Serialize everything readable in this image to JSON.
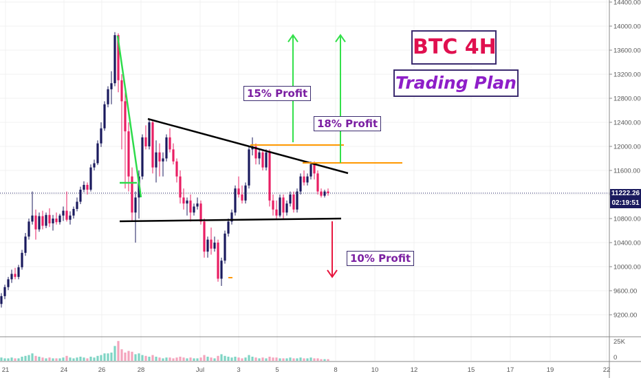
{
  "colors": {
    "up": "#1a1a5e",
    "down": "#e91e63",
    "vol_up": "#7fd4c4",
    "vol_down": "#f4a4bc",
    "trend_line": "#000000",
    "support_line": "#000000",
    "profit_target": "#ff9800",
    "arrow_up": "#33e04a",
    "arrow_down": "#e8173f",
    "drop_line": "#2edb4b",
    "title_text": "#e0104f",
    "subtitle_text": "#8e1ec8",
    "label_text": "#7b1fa2"
  },
  "annotations": {
    "title": "BTC 4H",
    "subtitle": "Trading Plan",
    "profit_15": "15% Profit",
    "profit_18": "18% Profit",
    "profit_10": "10% Profit"
  },
  "price_tags": {
    "last_price": "11222.26",
    "countdown": "02:19:51"
  },
  "chart_data": {
    "type": "candlestick",
    "symbol": "BTC 4H",
    "y_axis": {
      "range": [
        9000,
        14400
      ],
      "ticks": [
        9200,
        9600,
        10000,
        10400,
        10800,
        11200,
        11600,
        12000,
        12400,
        12800,
        13200,
        13600,
        14000,
        14400
      ],
      "tick_labels": [
        "9200.00",
        "9600.00",
        "10000.00",
        "10400.00",
        "10800.00",
        "11200.00",
        "11600.00",
        "12000.00",
        "12400.00",
        "12800.00",
        "13200.00",
        "13600.00",
        "14000.00",
        "14400.00"
      ]
    },
    "x_axis": {
      "labels": [
        "21",
        "24",
        "26",
        "28",
        "Jul",
        "3",
        "5",
        "8",
        "10",
        "12",
        "15",
        "17",
        "19",
        "22"
      ]
    },
    "volume_axis": {
      "labels": [
        "25K",
        "0"
      ]
    },
    "last_price": 11222.26,
    "candles": [
      {
        "o": 9380,
        "h": 9560,
        "l": 9320,
        "c": 9510
      },
      {
        "o": 9510,
        "h": 9700,
        "l": 9460,
        "c": 9660
      },
      {
        "o": 9660,
        "h": 9830,
        "l": 9610,
        "c": 9790
      },
      {
        "o": 9790,
        "h": 9950,
        "l": 9730,
        "c": 9880
      },
      {
        "o": 9880,
        "h": 9980,
        "l": 9790,
        "c": 9830
      },
      {
        "o": 9830,
        "h": 10030,
        "l": 9790,
        "c": 9990
      },
      {
        "o": 9990,
        "h": 10280,
        "l": 9950,
        "c": 10230
      },
      {
        "o": 10230,
        "h": 10560,
        "l": 10180,
        "c": 10500
      },
      {
        "o": 10500,
        "h": 10800,
        "l": 10450,
        "c": 10750
      },
      {
        "o": 10750,
        "h": 11250,
        "l": 10700,
        "c": 10850
      },
      {
        "o": 10850,
        "h": 10950,
        "l": 10450,
        "c": 10620
      },
      {
        "o": 10620,
        "h": 10900,
        "l": 10580,
        "c": 10840
      },
      {
        "o": 10840,
        "h": 10930,
        "l": 10620,
        "c": 10680
      },
      {
        "o": 10680,
        "h": 10900,
        "l": 10640,
        "c": 10860
      },
      {
        "o": 10860,
        "h": 10970,
        "l": 10660,
        "c": 10720
      },
      {
        "o": 10720,
        "h": 10860,
        "l": 10600,
        "c": 10800
      },
      {
        "o": 10800,
        "h": 10900,
        "l": 10700,
        "c": 10740
      },
      {
        "o": 10740,
        "h": 10880,
        "l": 10700,
        "c": 10850
      },
      {
        "o": 10850,
        "h": 11000,
        "l": 10760,
        "c": 10930
      },
      {
        "o": 10930,
        "h": 11250,
        "l": 10750,
        "c": 10780
      },
      {
        "o": 10780,
        "h": 10920,
        "l": 10700,
        "c": 10850
      },
      {
        "o": 10850,
        "h": 11000,
        "l": 10800,
        "c": 10960
      },
      {
        "o": 10960,
        "h": 11150,
        "l": 10920,
        "c": 11080
      },
      {
        "o": 11080,
        "h": 11330,
        "l": 11040,
        "c": 11280
      },
      {
        "o": 11280,
        "h": 11420,
        "l": 11240,
        "c": 11360
      },
      {
        "o": 11360,
        "h": 11400,
        "l": 11200,
        "c": 11280
      },
      {
        "o": 11280,
        "h": 11700,
        "l": 11250,
        "c": 11650
      },
      {
        "o": 11650,
        "h": 11780,
        "l": 11600,
        "c": 11720
      },
      {
        "o": 11720,
        "h": 12100,
        "l": 11690,
        "c": 12050
      },
      {
        "o": 12050,
        "h": 12400,
        "l": 11990,
        "c": 12300
      },
      {
        "o": 12300,
        "h": 12750,
        "l": 12260,
        "c": 12700
      },
      {
        "o": 12700,
        "h": 13000,
        "l": 12650,
        "c": 12950
      },
      {
        "o": 12950,
        "h": 13250,
        "l": 12700,
        "c": 13050
      },
      {
        "o": 13050,
        "h": 13900,
        "l": 13000,
        "c": 13850
      },
      {
        "o": 13850,
        "h": 13880,
        "l": 12900,
        "c": 13100
      },
      {
        "o": 13100,
        "h": 13200,
        "l": 11950,
        "c": 12750
      },
      {
        "o": 12750,
        "h": 12900,
        "l": 11300,
        "c": 12250
      },
      {
        "o": 12250,
        "h": 12400,
        "l": 11250,
        "c": 11500
      },
      {
        "o": 11500,
        "h": 11650,
        "l": 10750,
        "c": 10900
      },
      {
        "o": 10900,
        "h": 11250,
        "l": 10400,
        "c": 11150
      },
      {
        "o": 11150,
        "h": 11600,
        "l": 10800,
        "c": 11500
      },
      {
        "o": 11500,
        "h": 12200,
        "l": 11450,
        "c": 12150
      },
      {
        "o": 12150,
        "h": 12350,
        "l": 11950,
        "c": 12000
      },
      {
        "o": 12000,
        "h": 12450,
        "l": 11950,
        "c": 12400
      },
      {
        "o": 12400,
        "h": 12450,
        "l": 11550,
        "c": 11650
      },
      {
        "o": 11650,
        "h": 12100,
        "l": 11400,
        "c": 11900
      },
      {
        "o": 11900,
        "h": 12050,
        "l": 11500,
        "c": 11750
      },
      {
        "o": 11750,
        "h": 11900,
        "l": 11500,
        "c": 11800
      },
      {
        "o": 11800,
        "h": 12200,
        "l": 11750,
        "c": 12150
      },
      {
        "o": 12150,
        "h": 12300,
        "l": 11900,
        "c": 11950
      },
      {
        "o": 11950,
        "h": 12050,
        "l": 11700,
        "c": 11750
      },
      {
        "o": 11750,
        "h": 11800,
        "l": 11400,
        "c": 11500
      },
      {
        "o": 11500,
        "h": 11600,
        "l": 11050,
        "c": 11150
      },
      {
        "o": 11150,
        "h": 11300,
        "l": 10950,
        "c": 11050
      },
      {
        "o": 11050,
        "h": 11150,
        "l": 10850,
        "c": 11100
      },
      {
        "o": 11100,
        "h": 11200,
        "l": 10750,
        "c": 10900
      },
      {
        "o": 10900,
        "h": 11050,
        "l": 10850,
        "c": 11000
      },
      {
        "o": 11000,
        "h": 11150,
        "l": 10950,
        "c": 11050
      },
      {
        "o": 11050,
        "h": 11100,
        "l": 10700,
        "c": 10750
      },
      {
        "o": 10750,
        "h": 10800,
        "l": 10150,
        "c": 10250
      },
      {
        "o": 10250,
        "h": 10500,
        "l": 10150,
        "c": 10450
      },
      {
        "o": 10450,
        "h": 10650,
        "l": 10200,
        "c": 10300
      },
      {
        "o": 10300,
        "h": 10500,
        "l": 10250,
        "c": 10400
      },
      {
        "o": 10400,
        "h": 10450,
        "l": 9750,
        "c": 9800
      },
      {
        "o": 9800,
        "h": 10150,
        "l": 9680,
        "c": 10100
      },
      {
        "o": 10100,
        "h": 10600,
        "l": 10050,
        "c": 10550
      },
      {
        "o": 10550,
        "h": 10800,
        "l": 10500,
        "c": 10750
      },
      {
        "o": 10750,
        "h": 10950,
        "l": 10700,
        "c": 10900
      },
      {
        "o": 10900,
        "h": 11350,
        "l": 10850,
        "c": 11300
      },
      {
        "o": 11300,
        "h": 11500,
        "l": 11150,
        "c": 11200
      },
      {
        "o": 11200,
        "h": 11350,
        "l": 11050,
        "c": 11100
      },
      {
        "o": 11100,
        "h": 11400,
        "l": 11050,
        "c": 11350
      },
      {
        "o": 11350,
        "h": 12000,
        "l": 11300,
        "c": 11950
      },
      {
        "o": 11950,
        "h": 12150,
        "l": 11850,
        "c": 12000
      },
      {
        "o": 12000,
        "h": 12050,
        "l": 11700,
        "c": 11800
      },
      {
        "o": 11800,
        "h": 11950,
        "l": 11700,
        "c": 11900
      },
      {
        "o": 11900,
        "h": 11950,
        "l": 11600,
        "c": 11650
      },
      {
        "o": 11650,
        "h": 11950,
        "l": 11600,
        "c": 11900
      },
      {
        "o": 11900,
        "h": 11950,
        "l": 11000,
        "c": 11100
      },
      {
        "o": 11100,
        "h": 11200,
        "l": 10850,
        "c": 10950
      },
      {
        "o": 10950,
        "h": 11100,
        "l": 10800,
        "c": 10850
      },
      {
        "o": 10850,
        "h": 11200,
        "l": 10820,
        "c": 11150
      },
      {
        "o": 11150,
        "h": 11200,
        "l": 10800,
        "c": 10900
      },
      {
        "o": 10900,
        "h": 11100,
        "l": 10850,
        "c": 11050
      },
      {
        "o": 11050,
        "h": 11250,
        "l": 11000,
        "c": 11200
      },
      {
        "o": 11200,
        "h": 11250,
        "l": 10900,
        "c": 10950
      },
      {
        "o": 10950,
        "h": 11300,
        "l": 10900,
        "c": 11250
      },
      {
        "o": 11250,
        "h": 11550,
        "l": 11200,
        "c": 11500
      },
      {
        "o": 11500,
        "h": 11600,
        "l": 11350,
        "c": 11400
      },
      {
        "o": 11400,
        "h": 11550,
        "l": 11350,
        "c": 11500
      },
      {
        "o": 11500,
        "h": 11750,
        "l": 11450,
        "c": 11700
      },
      {
        "o": 11700,
        "h": 11750,
        "l": 11450,
        "c": 11550
      },
      {
        "o": 11550,
        "h": 11600,
        "l": 11200,
        "c": 11250
      },
      {
        "o": 11250,
        "h": 11300,
        "l": 11150,
        "c": 11180
      },
      {
        "o": 11180,
        "h": 11280,
        "l": 11150,
        "c": 11250
      },
      {
        "o": 11250,
        "h": 11300,
        "l": 11180,
        "c": 11222
      }
    ],
    "volume": [
      4,
      3,
      3,
      4,
      3,
      3,
      5,
      6,
      7,
      9,
      6,
      5,
      4,
      3,
      4,
      3,
      3,
      3,
      4,
      6,
      4,
      3,
      4,
      5,
      4,
      3,
      5,
      4,
      6,
      7,
      9,
      9,
      10,
      18,
      24,
      14,
      10,
      12,
      11,
      8,
      9,
      7,
      6,
      5,
      7,
      5,
      4,
      3,
      4,
      4,
      3,
      4,
      5,
      4,
      3,
      4,
      3,
      3,
      4,
      7,
      5,
      4,
      3,
      6,
      8,
      6,
      5,
      4,
      5,
      4,
      3,
      4,
      7,
      5,
      4,
      3,
      4,
      3,
      5,
      4,
      4,
      3,
      3,
      3,
      4,
      3,
      3,
      4,
      3,
      3,
      4,
      3,
      3,
      2,
      2,
      2
    ]
  }
}
